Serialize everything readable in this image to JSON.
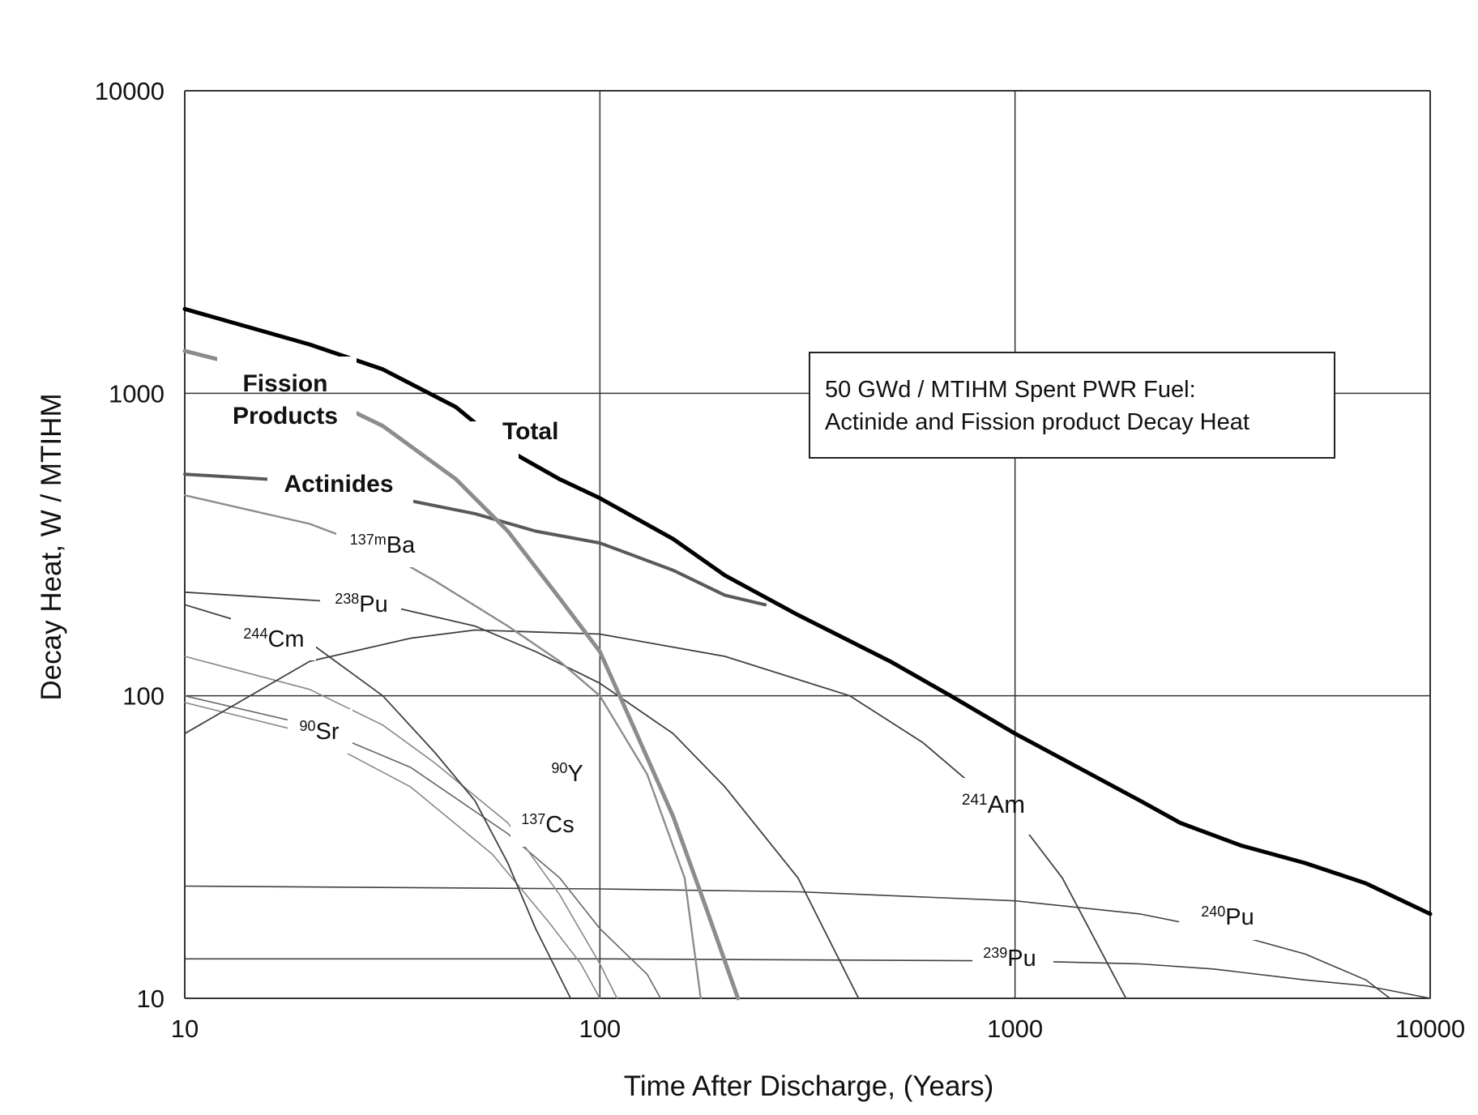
{
  "chart_data": {
    "type": "line",
    "xlabel": "Time After Discharge, (Years)",
    "ylabel": "Decay Heat, W / MTIHM",
    "xscale": "log",
    "yscale": "log",
    "xlim": [
      10,
      10000
    ],
    "ylim": [
      10,
      10000
    ],
    "xticks": [
      "10",
      "100",
      "1000",
      "10000"
    ],
    "yticks": [
      "10",
      "100",
      "1000",
      "10000"
    ],
    "grid": true,
    "annotation": {
      "line1": "50 GWd / MTIHM Spent PWR Fuel:",
      "line2": "Actinide and Fission product Decay Heat"
    },
    "series": [
      {
        "key": "total",
        "color": "#000000",
        "label_parts": [
          {
            "text": "Total"
          }
        ],
        "points": [
          [
            10,
            1900
          ],
          [
            20,
            1450
          ],
          [
            30,
            1200
          ],
          [
            45,
            900
          ],
          [
            60,
            650
          ],
          [
            80,
            520
          ],
          [
            100,
            450
          ],
          [
            150,
            330
          ],
          [
            200,
            250
          ],
          [
            300,
            185
          ],
          [
            500,
            130
          ],
          [
            700,
            100
          ],
          [
            1000,
            75
          ],
          [
            2000,
            45
          ],
          [
            2500,
            38
          ],
          [
            3500,
            32
          ],
          [
            5000,
            28
          ],
          [
            7000,
            24
          ],
          [
            10000,
            19
          ]
        ]
      },
      {
        "key": "fission-products",
        "color": "#8c8c8c",
        "label_parts": [
          {
            "text": "Fission"
          }
        ],
        "label_parts2": [
          {
            "text": "Products"
          }
        ],
        "points": [
          [
            10,
            1380
          ],
          [
            15,
            1200
          ],
          [
            20,
            1020
          ],
          [
            30,
            780
          ],
          [
            45,
            520
          ],
          [
            60,
            350
          ],
          [
            80,
            210
          ],
          [
            100,
            140
          ],
          [
            120,
            80
          ],
          [
            150,
            40
          ],
          [
            180,
            20
          ],
          [
            215,
            10
          ]
        ]
      },
      {
        "key": "actinides",
        "color": "#595959",
        "label_parts": [
          {
            "text": "Actinides"
          }
        ],
        "points": [
          [
            10,
            540
          ],
          [
            20,
            510
          ],
          [
            30,
            460
          ],
          [
            50,
            400
          ],
          [
            70,
            350
          ],
          [
            100,
            320
          ],
          [
            150,
            260
          ],
          [
            200,
            215
          ],
          [
            250,
            200
          ]
        ]
      },
      {
        "key": "ba137m",
        "color": "#8c8c8c",
        "label_parts": [
          {
            "text": "137m",
            "sup": true
          },
          {
            "text": "Ba"
          }
        ],
        "points": [
          [
            10,
            460
          ],
          [
            20,
            370
          ],
          [
            30,
            300
          ],
          [
            40,
            240
          ],
          [
            60,
            170
          ],
          [
            80,
            130
          ],
          [
            100,
            100
          ],
          [
            130,
            55
          ],
          [
            160,
            25
          ],
          [
            175,
            10
          ]
        ]
      },
      {
        "key": "pu238",
        "color": "#404040",
        "label_parts": [
          {
            "text": "238",
            "sup": true
          },
          {
            "text": "Pu"
          }
        ],
        "points": [
          [
            10,
            220
          ],
          [
            30,
            200
          ],
          [
            50,
            170
          ],
          [
            70,
            140
          ],
          [
            100,
            110
          ],
          [
            150,
            75
          ],
          [
            200,
            50
          ],
          [
            300,
            25
          ],
          [
            420,
            10
          ]
        ]
      },
      {
        "key": "cm244",
        "color": "#404040",
        "label_parts": [
          {
            "text": "244",
            "sup": true
          },
          {
            "text": "Cm"
          }
        ],
        "points": [
          [
            10,
            200
          ],
          [
            20,
            150
          ],
          [
            30,
            100
          ],
          [
            40,
            65
          ],
          [
            50,
            45
          ],
          [
            60,
            28
          ],
          [
            70,
            17
          ],
          [
            85,
            10
          ]
        ]
      },
      {
        "key": "am241",
        "color": "#404040",
        "label_parts": [
          {
            "text": "241",
            "sup": true
          },
          {
            "text": "Am"
          }
        ],
        "points": [
          [
            10,
            75
          ],
          [
            20,
            130
          ],
          [
            35,
            155
          ],
          [
            50,
            165
          ],
          [
            100,
            160
          ],
          [
            200,
            135
          ],
          [
            400,
            100
          ],
          [
            600,
            70
          ],
          [
            800,
            50
          ],
          [
            1000,
            40
          ],
          [
            1300,
            25
          ],
          [
            1850,
            10
          ]
        ]
      },
      {
        "key": "sr90",
        "color": "#888888",
        "label_parts": [
          {
            "text": "90",
            "sup": true
          },
          {
            "text": "Sr"
          }
        ],
        "points": [
          [
            10,
            135
          ],
          [
            20,
            105
          ],
          [
            30,
            80
          ],
          [
            40,
            60
          ],
          [
            60,
            38
          ],
          [
            80,
            22
          ],
          [
            100,
            13
          ],
          [
            110,
            10
          ]
        ]
      },
      {
        "key": "y90",
        "color": "#666666",
        "label_parts": [
          {
            "text": "90",
            "sup": true
          },
          {
            "text": "Y"
          }
        ],
        "points": [
          [
            10,
            100
          ],
          [
            20,
            80
          ],
          [
            35,
            58
          ],
          [
            60,
            35
          ],
          [
            80,
            25
          ],
          [
            100,
            17
          ],
          [
            130,
            12
          ],
          [
            140,
            10
          ]
        ]
      },
      {
        "key": "cs137",
        "color": "#888888",
        "label_parts": [
          {
            "text": "137",
            "sup": true
          },
          {
            "text": "Cs"
          }
        ],
        "points": [
          [
            10,
            95
          ],
          [
            20,
            75
          ],
          [
            35,
            50
          ],
          [
            55,
            30
          ],
          [
            75,
            18
          ],
          [
            90,
            13
          ],
          [
            100,
            10
          ]
        ]
      },
      {
        "key": "pu240",
        "color": "#404040",
        "label_parts": [
          {
            "text": "240",
            "sup": true
          },
          {
            "text": "Pu"
          }
        ],
        "points": [
          [
            10,
            23.5
          ],
          [
            100,
            23
          ],
          [
            300,
            22.5
          ],
          [
            1000,
            21
          ],
          [
            2000,
            19
          ],
          [
            3000,
            17
          ],
          [
            5000,
            14
          ],
          [
            7000,
            11.5
          ],
          [
            8000,
            10
          ]
        ]
      },
      {
        "key": "pu239",
        "color": "#404040",
        "label_parts": [
          {
            "text": "239",
            "sup": true
          },
          {
            "text": "Pu"
          }
        ],
        "points": [
          [
            10,
            13.5
          ],
          [
            100,
            13.5
          ],
          [
            1000,
            13.3
          ],
          [
            2000,
            13
          ],
          [
            3000,
            12.5
          ],
          [
            5000,
            11.5
          ],
          [
            7000,
            11
          ],
          [
            10000,
            10
          ]
        ]
      }
    ]
  }
}
